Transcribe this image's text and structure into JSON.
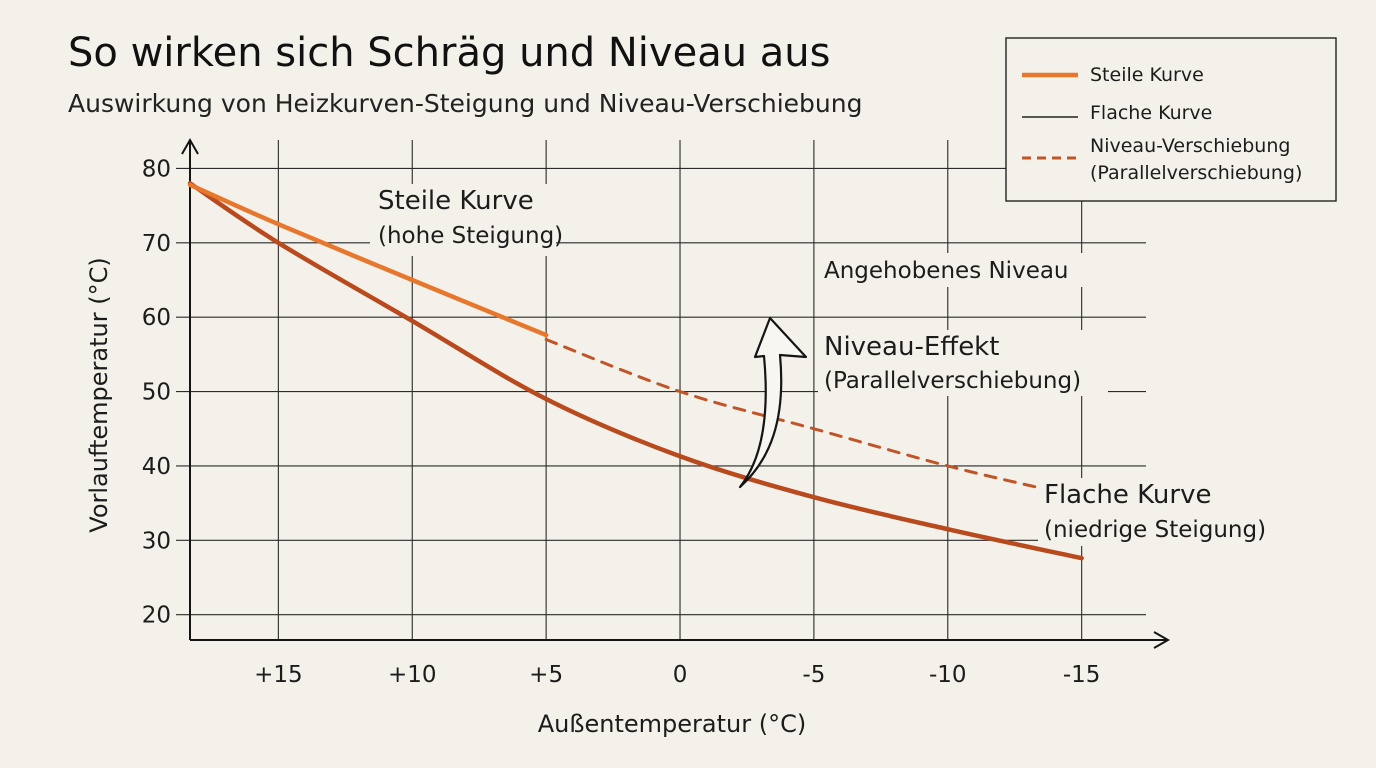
{
  "chart_data": {
    "type": "line",
    "title": "So wirken sich Schräg und Niveau aus",
    "subtitle": "Auswirkung von Heizkurven-Steigung und Niveau-Verschiebung",
    "xlabel": "Außentemperatur (°C)",
    "ylabel": "Vorlauftemperatur (°C)",
    "x_ticks": [
      15,
      10,
      5,
      0,
      -5,
      -10,
      -15
    ],
    "x_tick_labels": [
      "+15",
      "+10",
      "+5",
      "0",
      "-5",
      "-10",
      "-15"
    ],
    "y_ticks": [
      20,
      30,
      40,
      50,
      60,
      70,
      80
    ],
    "xlim": [
      18.3,
      -18
    ],
    "ylim": [
      16.6,
      81
    ],
    "x_reversed": true,
    "grid": true,
    "series": [
      {
        "name": "Steile Kurve",
        "color": "#e8772e",
        "style": "solid",
        "x": [
          18.3,
          15,
          10,
          5
        ],
        "y": [
          77.8,
          72.5,
          65,
          57.6
        ]
      },
      {
        "name": "Flache Kurve",
        "color": "#b84a1d",
        "style": "solid",
        "x": [
          18.3,
          15,
          10,
          5,
          0,
          -5,
          -10,
          -15
        ],
        "y": [
          78,
          70,
          59.5,
          49,
          41.3,
          35.8,
          31.5,
          27.6
        ]
      },
      {
        "name": "Niveau-Verschiebung (Parallelverschiebung)",
        "color": "#c0552a",
        "style": "dashed",
        "x": [
          5,
          0,
          -5,
          -10,
          -13.5
        ],
        "y": [
          57,
          50,
          45,
          40,
          37
        ]
      }
    ],
    "annotations": {
      "steep_head": "Steile Kurve",
      "steep_sub": "(hohe Steigung)",
      "raised": "Angehobenes Niveau",
      "effect_head": "Niveau-Effekt",
      "effect_sub": "(Parallelverschiebung)",
      "flat_head": "Flache Kurve",
      "flat_sub": "(niedrige Steigung)"
    },
    "legend": {
      "placement": "top-right",
      "items": [
        {
          "line1": "Steile Kurve",
          "line2": "",
          "color": "#e8772e",
          "style": "solid-thick"
        },
        {
          "line1": "Flache Kurve",
          "line2": "",
          "color": "#222222",
          "style": "solid-thin"
        },
        {
          "line1": "Niveau-Verschiebung",
          "line2": "(Parallelverschiebung)",
          "color": "#c0552a",
          "style": "dashed"
        }
      ]
    },
    "colors": {
      "accent_orange": "#e8772e",
      "accent_dark": "#b84a1d",
      "background": "#f3f1ea"
    }
  }
}
